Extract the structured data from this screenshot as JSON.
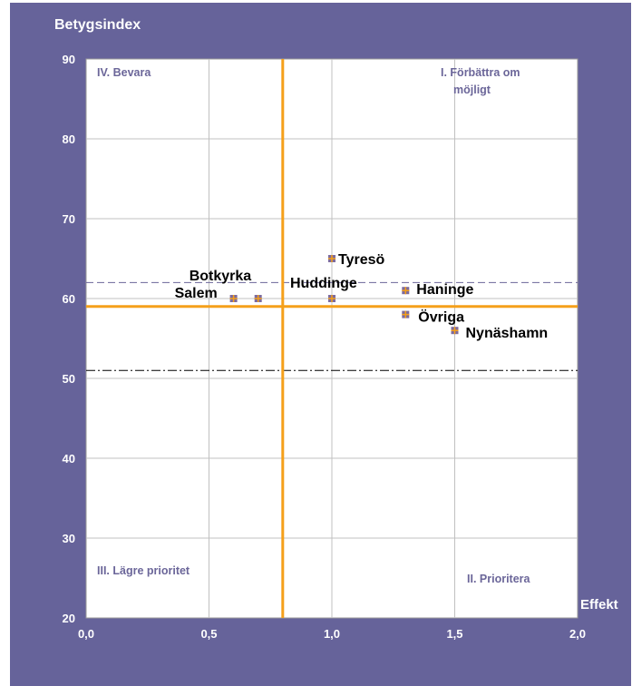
{
  "chart_data": {
    "type": "scatter",
    "title": "Betygsindex",
    "xlabel": "Effekt",
    "ylabel": "Betygsindex",
    "xlim": [
      0,
      2
    ],
    "ylim": [
      20,
      90
    ],
    "x_ticks": [
      "0,0",
      "0,5",
      "1,0",
      "1,5",
      "2,0"
    ],
    "y_ticks": [
      "20",
      "30",
      "40",
      "50",
      "60",
      "70",
      "80",
      "90"
    ],
    "grid": true,
    "points": [
      {
        "label": "Salem",
        "x": 0.6,
        "y": 60
      },
      {
        "label": "Botkyrka",
        "x": 0.7,
        "y": 60
      },
      {
        "label": "Huddinge",
        "x": 1.0,
        "y": 60
      },
      {
        "label": "Tyresö",
        "x": 1.0,
        "y": 65
      },
      {
        "label": "Haninge",
        "x": 1.3,
        "y": 61
      },
      {
        "label": "Övriga",
        "x": 1.3,
        "y": 58
      },
      {
        "label": "Nynäshamn",
        "x": 1.5,
        "y": 56
      }
    ],
    "quadrant_labels": {
      "top_left": "IV. Bevara",
      "top_right_line1": "I. Förbättra om",
      "top_right_line2": "möjligt",
      "bottom_left": "III. Lägre prioritet",
      "bottom_right": "II. Prioritera"
    },
    "reference_lines": {
      "vertical_x": 0.8,
      "horizontal_y": 59,
      "dashed_upper_y": 62,
      "dashdot_lower_y": 51
    },
    "colors": {
      "background": "#66639a",
      "plot_area": "#ffffff",
      "grid": "#c0c0c0",
      "reference": "#f5a01a",
      "marker": "#7d6b9e",
      "marker_cross": "#f5a01a",
      "dashed_upper": "#6b6699",
      "dashdot_lower": "#000000",
      "quadrant_text": "#6b6699",
      "tick_text": "#ffffff"
    }
  }
}
